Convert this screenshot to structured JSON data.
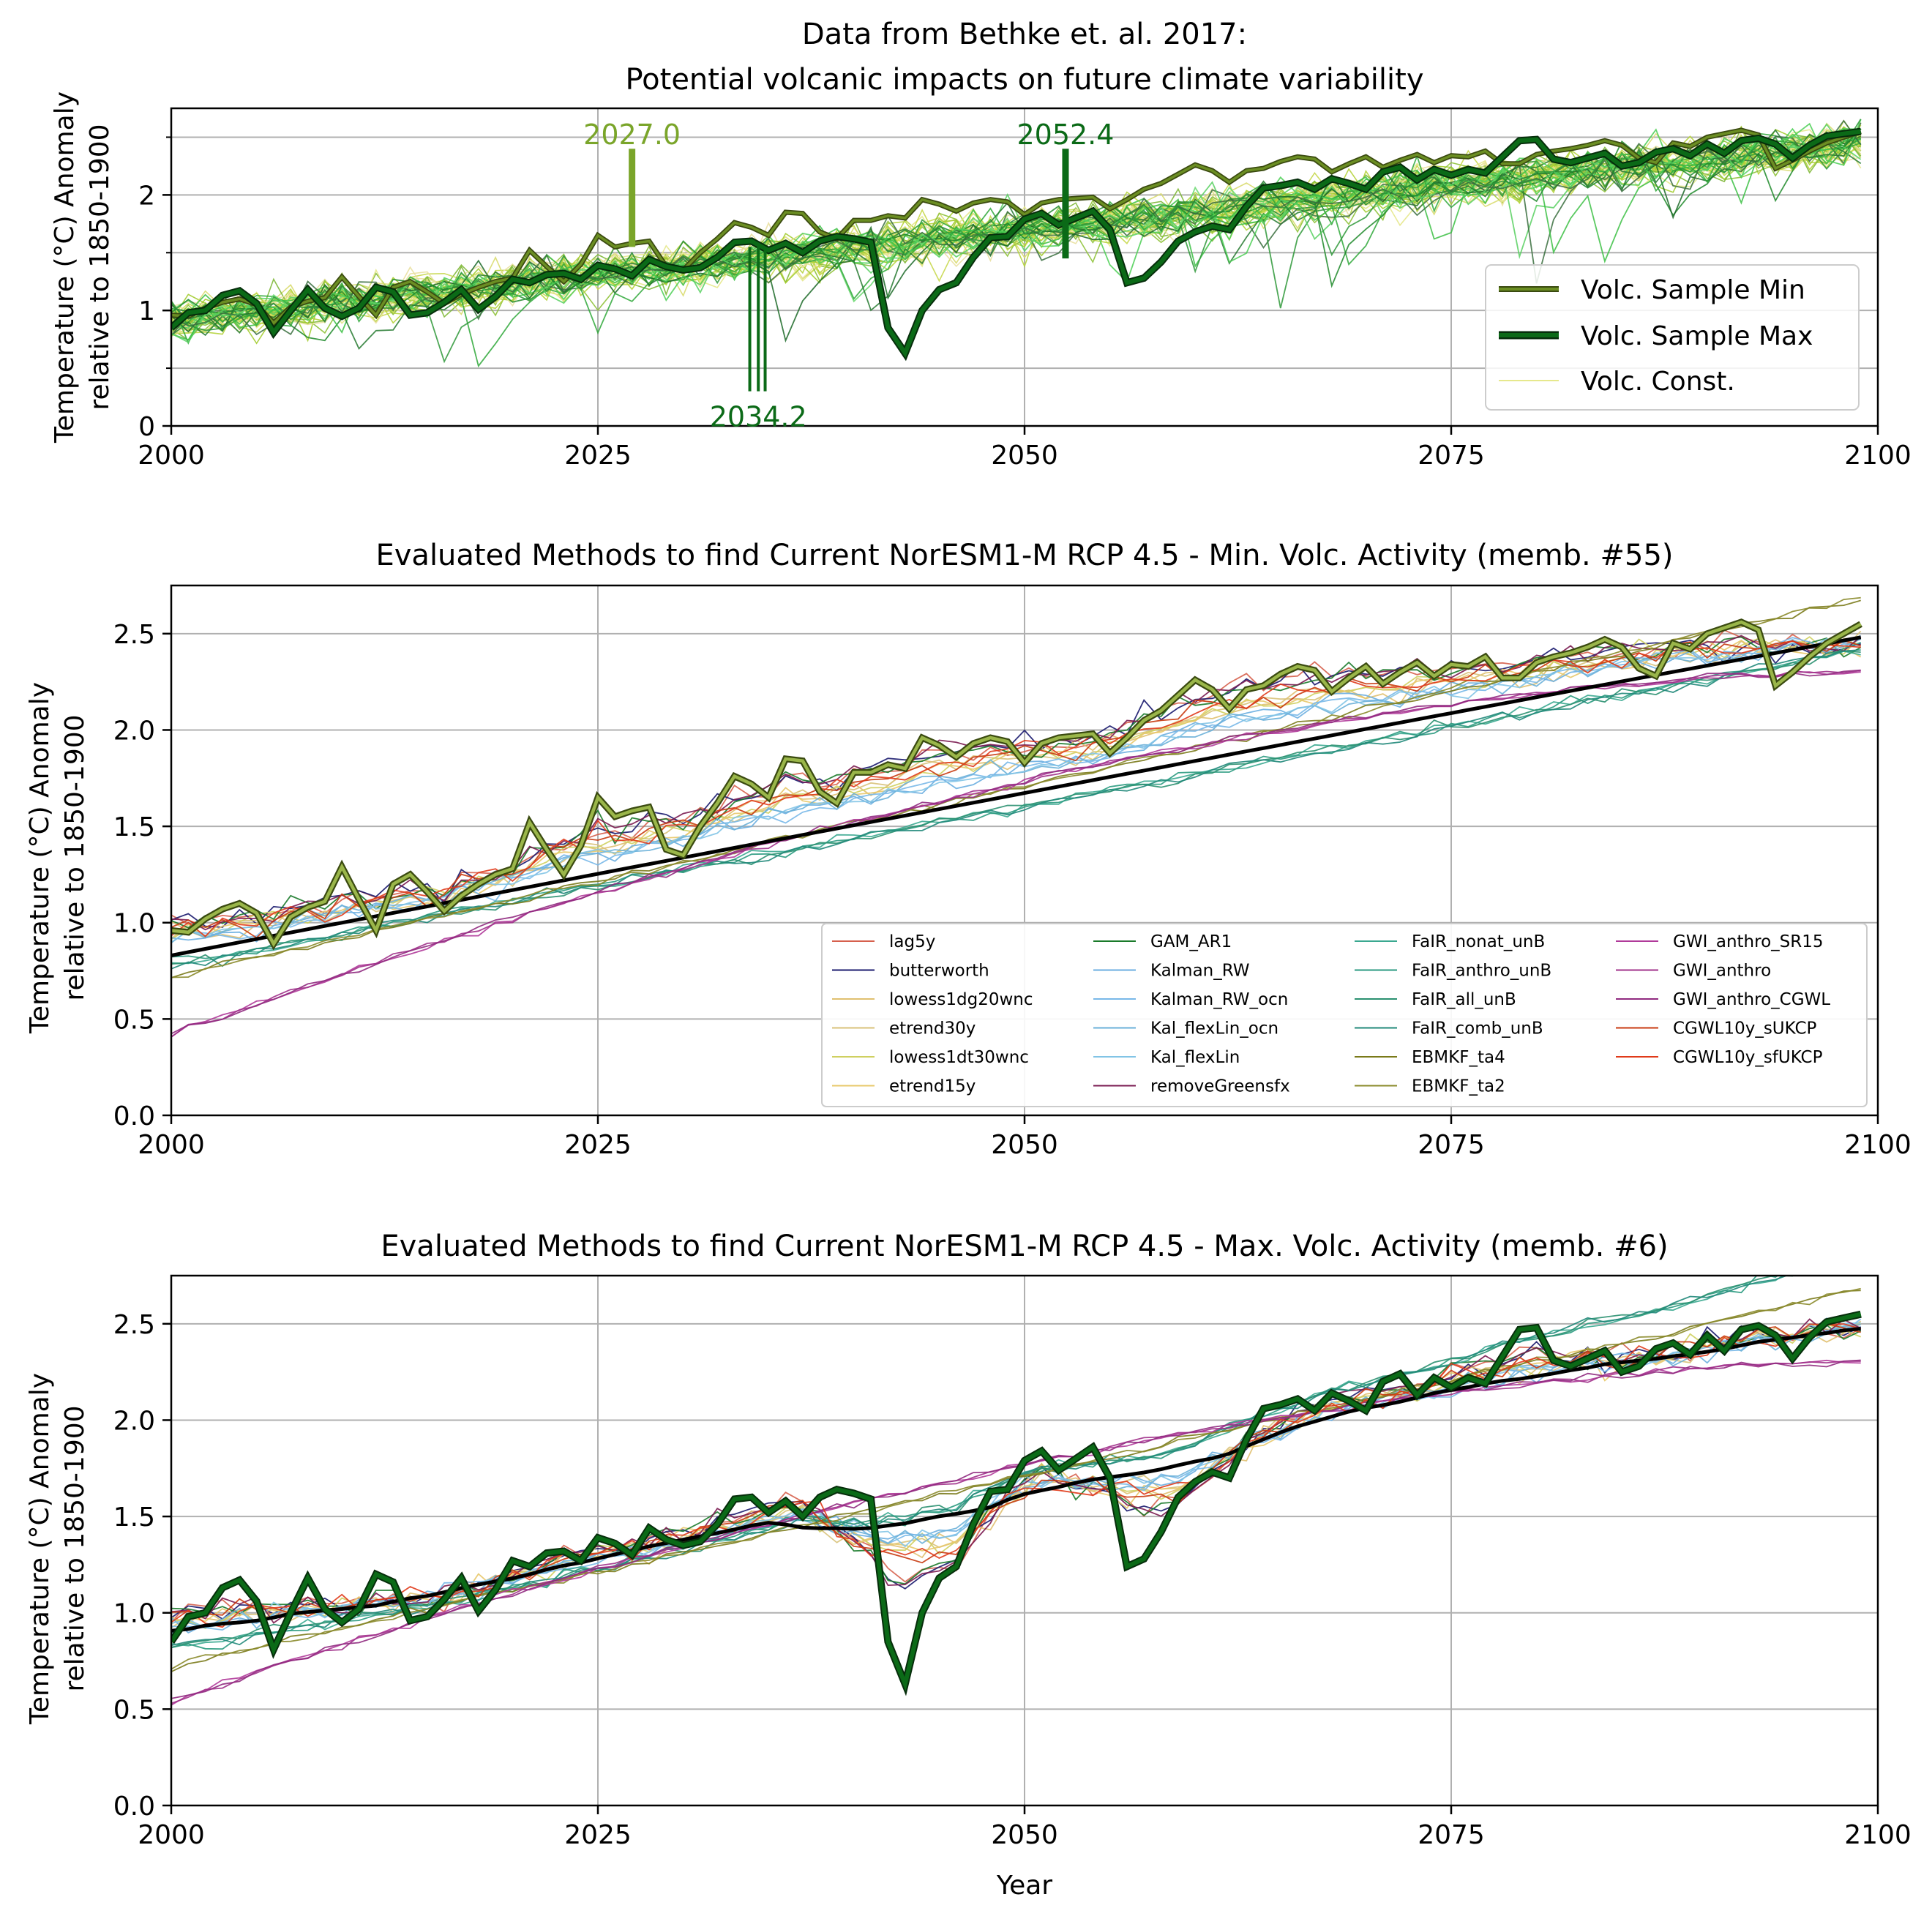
{
  "figure": {
    "xlabel": "Year"
  },
  "colors": {
    "volc_min": "#6b8e23",
    "volc_min_dark": "#3a4a10",
    "volc_max": "#0b6a17",
    "volc_max_dark": "#062d0b",
    "volc_const": "#e6e88c",
    "grid": "#b0b0b0",
    "mean": "#000000"
  },
  "chart_data": [
    {
      "type": "line",
      "title": [
        "Data from Bethke et. al. 2017:",
        "Potential volcanic impacts on future climate variability"
      ],
      "xlabel": "",
      "ylabel": [
        "Temperature (°C) Anomaly",
        "relative to 1850-1900"
      ],
      "xlim": [
        2000,
        2100
      ],
      "ylim": [
        0,
        2.75
      ],
      "xticks": [
        2000,
        2025,
        2050,
        2075,
        2100
      ],
      "yticks": [
        0,
        1,
        2
      ],
      "yminor": [
        0.5,
        1.5,
        2.5
      ],
      "grid": true,
      "legend": {
        "placement": "lower-right",
        "entries": [
          "Volc. Sample Min",
          "Volc. Sample Max",
          "Volc. Const."
        ]
      },
      "annotations": [
        {
          "label": "2027.0",
          "x": 2027.0,
          "y_from": 1.55,
          "y_to": 2.4,
          "color": "#7aa52a"
        },
        {
          "label": "2052.4",
          "x": 2052.4,
          "y_from": 1.45,
          "y_to": 2.4,
          "color": "#0b6a17"
        },
        {
          "label": "2034.2",
          "x": [
            2033.9,
            2034.4,
            2034.8
          ],
          "y_from": 0.3,
          "y_to": 1.55,
          "color": "#0b6a17"
        }
      ],
      "series": [
        {
          "name": "Volc. Sample Min",
          "role": "min",
          "x_start": 2000,
          "values": [
            0.96,
            0.95,
            1.02,
            1.07,
            1.1,
            1.05,
            0.89,
            1.03,
            1.08,
            1.11,
            1.29,
            1.12,
            0.96,
            1.2,
            1.25,
            1.16,
            1.06,
            1.14,
            1.2,
            1.25,
            1.28,
            1.52,
            1.38,
            1.25,
            1.4,
            1.65,
            1.55,
            1.58,
            1.6,
            1.38,
            1.35,
            1.5,
            1.62,
            1.76,
            1.72,
            1.65,
            1.85,
            1.84,
            1.68,
            1.62,
            1.78,
            1.78,
            1.82,
            1.8,
            1.96,
            1.92,
            1.86,
            1.93,
            1.96,
            1.94,
            1.83,
            1.93,
            1.96,
            1.97,
            1.98,
            1.88,
            1.96,
            2.05,
            2.1,
            2.18,
            2.26,
            2.21,
            2.11,
            2.21,
            2.23,
            2.29,
            2.33,
            2.31,
            2.2,
            2.27,
            2.33,
            2.24,
            2.3,
            2.35,
            2.28,
            2.34,
            2.33,
            2.38,
            2.27,
            2.27,
            2.35,
            2.38,
            2.4,
            2.43,
            2.47,
            2.43,
            2.32,
            2.28,
            2.45,
            2.42,
            2.5,
            2.53,
            2.56,
            2.52,
            2.23,
            2.3,
            2.38,
            2.45,
            2.5,
            2.55
          ]
        },
        {
          "name": "Volc. Sample Max",
          "role": "max",
          "x_start": 2000,
          "values": [
            0.85,
            0.98,
            1.0,
            1.13,
            1.17,
            1.06,
            0.81,
            1.0,
            1.18,
            1.02,
            0.95,
            1.02,
            1.2,
            1.16,
            0.96,
            0.98,
            1.07,
            1.18,
            1.01,
            1.12,
            1.27,
            1.24,
            1.31,
            1.32,
            1.27,
            1.39,
            1.36,
            1.3,
            1.44,
            1.38,
            1.35,
            1.37,
            1.46,
            1.59,
            1.6,
            1.52,
            1.58,
            1.5,
            1.6,
            1.64,
            1.62,
            1.59,
            0.85,
            0.63,
            1.0,
            1.18,
            1.24,
            1.46,
            1.63,
            1.64,
            1.79,
            1.84,
            1.74,
            1.8,
            1.86,
            1.7,
            1.24,
            1.28,
            1.42,
            1.6,
            1.68,
            1.73,
            1.7,
            1.9,
            2.06,
            2.08,
            2.11,
            2.05,
            2.14,
            2.1,
            2.05,
            2.2,
            2.24,
            2.13,
            2.22,
            2.17,
            2.22,
            2.19,
            2.33,
            2.47,
            2.48,
            2.31,
            2.28,
            2.32,
            2.36,
            2.25,
            2.28,
            2.37,
            2.4,
            2.34,
            2.44,
            2.36,
            2.47,
            2.49,
            2.44,
            2.32,
            2.43,
            2.51,
            2.53,
            2.55
          ]
        }
      ]
    },
    {
      "type": "line",
      "title": "Evaluated Methods to find Current NorESM1-M RCP 4.5 - Min. Volc. Activity (memb. #55)",
      "xlabel": "",
      "ylabel": [
        "Temperature (°C) Anomaly",
        "relative to 1850-1900"
      ],
      "xlim": [
        2000,
        2100
      ],
      "ylim": [
        0,
        2.75
      ],
      "xticks": [
        2000,
        2025,
        2050,
        2075,
        2100
      ],
      "yticks": [
        0.0,
        0.5,
        1.0,
        1.5,
        2.0,
        2.5
      ],
      "grid": true,
      "legend": {
        "placement": "lower-right",
        "ncol": 4,
        "entries": [
          {
            "name": "lag5y",
            "color": "#d6604d"
          },
          {
            "name": "butterworth",
            "color": "#1a1a6e"
          },
          {
            "name": "lowess1dg20wnc",
            "color": "#e0c070"
          },
          {
            "name": "etrend30y",
            "color": "#d8c27a"
          },
          {
            "name": "lowess1dt30wnc",
            "color": "#cfd060"
          },
          {
            "name": "etrend15y",
            "color": "#e8c86a"
          },
          {
            "name": "GAM_AR1",
            "color": "#1a7a2a"
          },
          {
            "name": "Kalman_RW",
            "color": "#6aaee0"
          },
          {
            "name": "Kalman_RW_ocn",
            "color": "#78b8e8"
          },
          {
            "name": "Kal_flexLin_ocn",
            "color": "#6ab0d8"
          },
          {
            "name": "Kal_flexLin",
            "color": "#82c4e6"
          },
          {
            "name": "removeGreensfx",
            "color": "#7a1a50"
          },
          {
            "name": "FaIR_nonat_unB",
            "color": "#3aa890"
          },
          {
            "name": "FaIR_anthro_unB",
            "color": "#2a9a80"
          },
          {
            "name": "FaIR_all_unB",
            "color": "#2a9070"
          },
          {
            "name": "FaIR_comb_unB",
            "color": "#20887a"
          },
          {
            "name": "EBMKF_ta4",
            "color": "#7a7a1a"
          },
          {
            "name": "EBMKF_ta2",
            "color": "#8a8a2a"
          },
          {
            "name": "GWI_anthro_SR15",
            "color": "#b03a9a"
          },
          {
            "name": "GWI_anthro",
            "color": "#a0308a"
          },
          {
            "name": "GWI_anthro_CGWL",
            "color": "#902a80"
          },
          {
            "name": "CGWL10y_sUKCP",
            "color": "#c83a10"
          },
          {
            "name": "CGWL10y_sfUKCP",
            "color": "#e03a1a"
          }
        ]
      },
      "highlight_series": "Volc. Sample Min"
    },
    {
      "type": "line",
      "title": "Evaluated Methods to find Current NorESM1-M RCP 4.5 - Max. Volc. Activity (memb. #6)",
      "xlabel": "Year",
      "ylabel": [
        "Temperature (°C) Anomaly",
        "relative to 1850-1900"
      ],
      "xlim": [
        2000,
        2100
      ],
      "ylim": [
        0,
        2.75
      ],
      "xticks": [
        2000,
        2025,
        2050,
        2075,
        2100
      ],
      "yticks": [
        0.0,
        0.5,
        1.0,
        1.5,
        2.0,
        2.5
      ],
      "grid": true,
      "highlight_series": "Volc. Sample Max"
    }
  ]
}
